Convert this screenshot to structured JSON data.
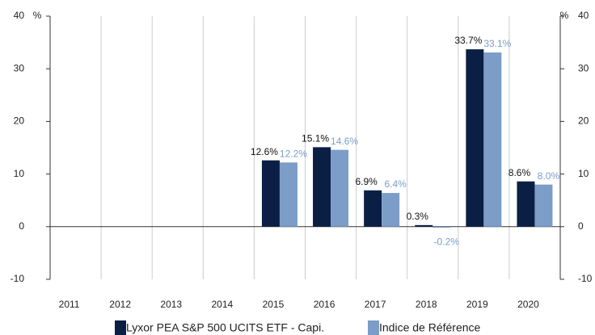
{
  "chart_data": {
    "type": "bar",
    "y_label": "%",
    "y2_label": "%",
    "categories": [
      "2011",
      "2012",
      "2013",
      "2014",
      "2015",
      "2016",
      "2017",
      "2018",
      "2019",
      "2020"
    ],
    "series": [
      {
        "name": "Lyxor PEA S&P 500 UCITS ETF - Capi.",
        "color": "#0b1f45",
        "values": [
          null,
          null,
          null,
          null,
          12.6,
          15.1,
          6.9,
          0.3,
          33.7,
          8.6
        ],
        "value_labels": [
          null,
          null,
          null,
          null,
          "12.6%",
          "15.1%",
          "6.9%",
          "0.3%",
          "33.7%",
          "8.6%"
        ]
      },
      {
        "name": "Indice de Référence",
        "color": "#7b9dc7",
        "values": [
          null,
          null,
          null,
          null,
          12.2,
          14.6,
          6.4,
          -0.2,
          33.1,
          8.0
        ],
        "value_labels": [
          null,
          null,
          null,
          null,
          "12.2%",
          "14.6%",
          "6.4%",
          "-0.2%",
          "33.1%",
          "8.0%"
        ]
      }
    ],
    "ylim": [
      -10,
      40
    ],
    "yticks": [
      -10,
      0,
      10,
      20,
      30,
      40
    ],
    "y2lim": [
      -10,
      40
    ],
    "y2ticks": [
      -10,
      0,
      10,
      20,
      30,
      40
    ]
  }
}
